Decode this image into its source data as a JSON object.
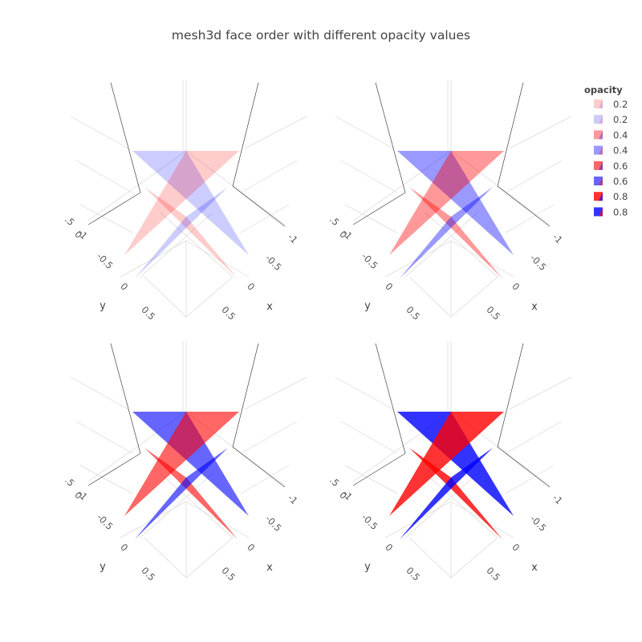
{
  "title": "mesh3d face order with different opacity values",
  "colors": {
    "red": "#ff0000",
    "blue": "#0000ff",
    "grid": "#e3e3e3",
    "axis": "#444444"
  },
  "chart_data": {
    "type": "mesh3d",
    "scenes": [
      {
        "name": "scene1",
        "opacity": 0.2,
        "ticks": {
          "x": [
            "-1",
            "-0.5",
            "0",
            "0.5"
          ],
          "y": [
            "-1",
            "-0.5",
            "0",
            "0.5"
          ],
          "z": [
            "0",
            ".5"
          ]
        },
        "xlabel": "x",
        "ylabel": "y"
      },
      {
        "name": "scene2",
        "opacity": 0.4,
        "ticks": {
          "x": [
            "-1",
            "-0.5",
            "0",
            "0.5"
          ],
          "y": [
            "-1",
            "-0.5",
            "0",
            "0.5"
          ],
          "z": [
            "0",
            ".5"
          ]
        },
        "xlabel": "x",
        "ylabel": "y"
      },
      {
        "name": "scene3",
        "opacity": 0.6,
        "ticks": {
          "x": [
            "-1",
            "-0.5",
            "0",
            "0.5"
          ],
          "y": [
            "-1",
            "-0.5",
            "0",
            "0.5"
          ],
          "z": [
            "0",
            ".5"
          ]
        },
        "xlabel": "x",
        "ylabel": "y"
      },
      {
        "name": "scene4",
        "opacity": 0.8,
        "ticks": {
          "x": [
            "-1",
            "-0.5",
            "0",
            "0.5"
          ],
          "y": [
            "-1",
            "-0.5",
            "0",
            "0.5"
          ],
          "z": [
            "0",
            ".5"
          ]
        },
        "xlabel": "x",
        "ylabel": "y"
      }
    ],
    "legend": {
      "title": "opacity",
      "placement": "top-right",
      "entries": [
        {
          "label": "0.2",
          "color": "red",
          "opacity": 0.2
        },
        {
          "label": "0.2",
          "color": "blue",
          "opacity": 0.2
        },
        {
          "label": "0.4",
          "color": "red",
          "opacity": 0.4
        },
        {
          "label": "0.4",
          "color": "blue",
          "opacity": 0.4
        },
        {
          "label": "0.6",
          "color": "red",
          "opacity": 0.6
        },
        {
          "label": "0.6",
          "color": "blue",
          "opacity": 0.6
        },
        {
          "label": "0.8",
          "color": "red",
          "opacity": 0.8
        },
        {
          "label": "0.8",
          "color": "blue",
          "opacity": 0.8
        }
      ]
    }
  }
}
